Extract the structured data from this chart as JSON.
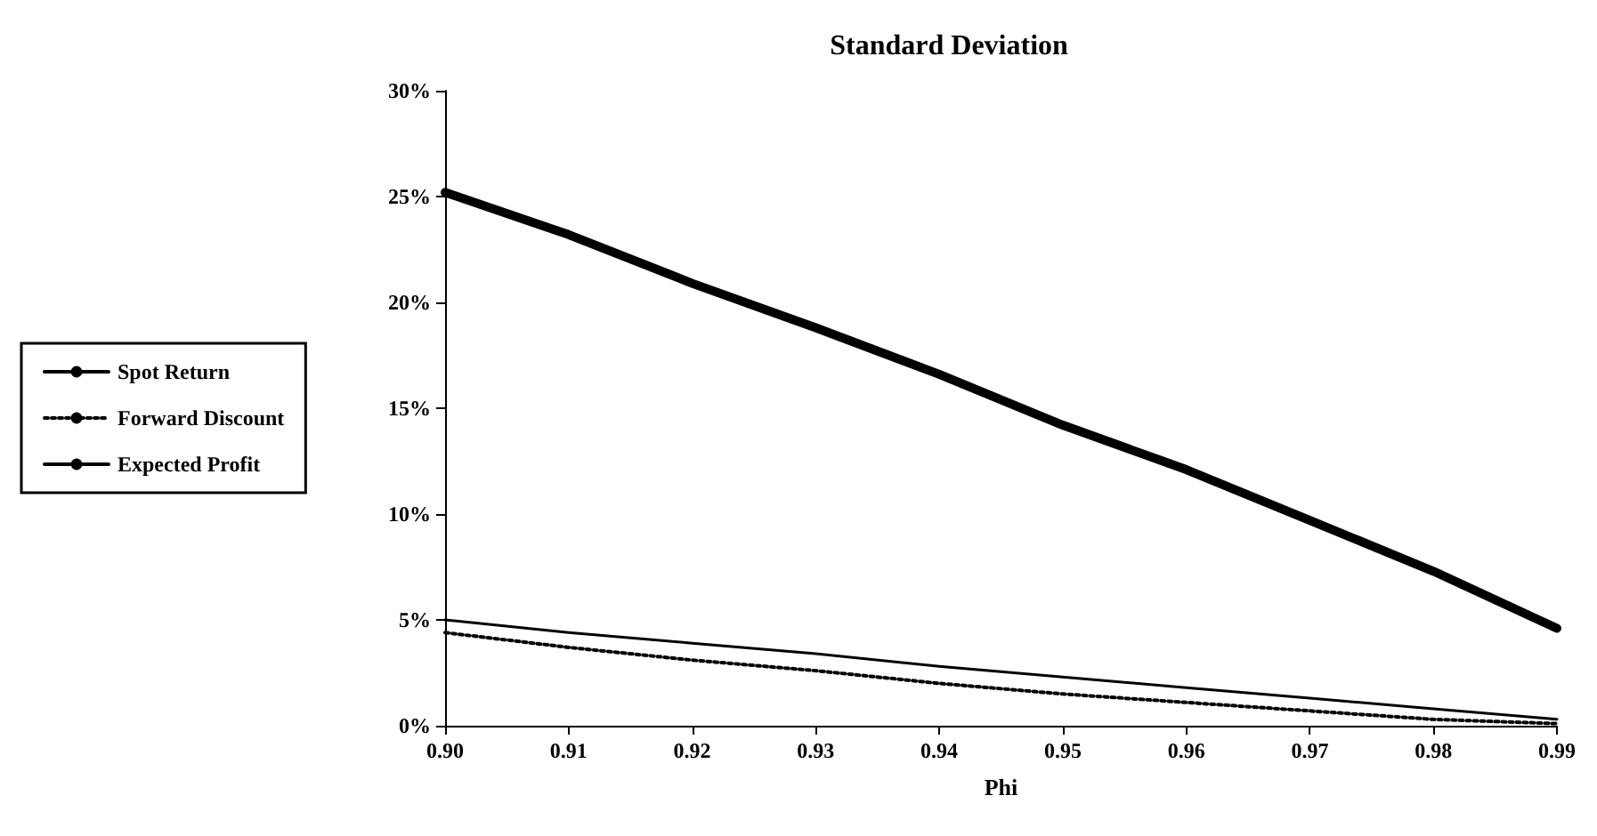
{
  "chart_data": {
    "type": "line",
    "title": "Standard Deviation",
    "xlabel": "Phi",
    "x": [
      0.9,
      0.91,
      0.92,
      0.93,
      0.94,
      0.95,
      0.96,
      0.97,
      0.98,
      0.99
    ],
    "series": [
      {
        "name": "Spot Return",
        "color": "#000000",
        "line_style": "solid",
        "values": [
          25.2,
          23.2,
          20.9,
          18.8,
          16.6,
          14.2,
          12.1,
          9.7,
          7.3,
          4.6
        ]
      },
      {
        "name": "Forward Discount",
        "color": "#000000",
        "line_style": "dotted",
        "values": [
          4.4,
          3.7,
          3.1,
          2.6,
          2.0,
          1.5,
          1.1,
          0.7,
          0.3,
          0.1
        ]
      },
      {
        "name": "Expected Profit",
        "color": "#000000",
        "line_style": "solid",
        "values": [
          5.0,
          4.4,
          3.9,
          3.4,
          2.8,
          2.3,
          1.8,
          1.3,
          0.8,
          0.3
        ]
      }
    ],
    "xlim": [
      0.9,
      0.99
    ],
    "xticks": [
      {
        "value": 0.9,
        "label": "0.90"
      },
      0.91,
      0.92,
      0.93,
      0.94,
      0.95,
      0.96,
      0.97,
      0.98,
      0.99
    ],
    "ylim": [
      0,
      30
    ],
    "yticks": [
      {
        "value": 0,
        "label": "0%"
      },
      {
        "value": 5,
        "label": "5%"
      },
      {
        "value": 10,
        "label": "10%"
      },
      {
        "value": 15,
        "label": "15%"
      },
      {
        "value": 20,
        "label": "20%"
      },
      {
        "value": 25,
        "label": "25%"
      },
      {
        "value": 30,
        "label": "30%"
      }
    ],
    "grid": false,
    "legend": "left",
    "marker": "none"
  }
}
